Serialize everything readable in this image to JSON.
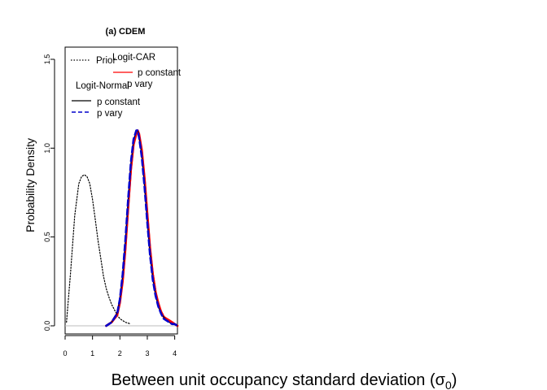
{
  "chart_data": {
    "type": "line",
    "panel_title": "(a) CDEM",
    "xlabel_text": "Between unit occupancy standard deviation (",
    "xlabel_symbol": "σ",
    "xlabel_subscript": "0",
    "xlabel_close": ")",
    "ylabel": "Probability Density",
    "xlim": [
      0,
      4.1
    ],
    "ylim": [
      0,
      1.55
    ],
    "x_ticks": [
      0,
      1,
      2,
      3,
      4
    ],
    "y_ticks": [
      0.0,
      0.5,
      1.0,
      1.5
    ],
    "x_tick_labels": [
      "0",
      "1",
      "2",
      "3",
      "4"
    ],
    "y_tick_labels": [
      "0.0",
      "0.5",
      "1.0",
      "1.5"
    ],
    "grid": false,
    "legend": {
      "placement": "top-left",
      "prior_label": "Prior",
      "car_group": "Logit-CAR",
      "car_const": "p constant",
      "car_vary": "p vary",
      "normal_group": "Logit-Normal",
      "normal_const": "p constant",
      "normal_vary": "p vary"
    },
    "series": [
      {
        "name": "Prior",
        "color": "#000000",
        "dash": "dotted",
        "x": [
          0.05,
          0.2,
          0.35,
          0.5,
          0.6,
          0.7,
          0.8,
          0.9,
          1.0,
          1.1,
          1.2,
          1.3,
          1.4,
          1.5,
          1.6,
          1.7,
          1.8,
          1.9,
          2.0,
          2.2,
          2.4
        ],
        "values": [
          0.02,
          0.3,
          0.62,
          0.8,
          0.84,
          0.85,
          0.84,
          0.8,
          0.71,
          0.6,
          0.48,
          0.38,
          0.28,
          0.21,
          0.16,
          0.12,
          0.09,
          0.06,
          0.04,
          0.02,
          0.01
        ]
      },
      {
        "name": "Logit-CAR p constant",
        "color": "#ff0000",
        "dash": "solid",
        "x": [
          1.5,
          1.7,
          1.9,
          2.0,
          2.1,
          2.2,
          2.3,
          2.4,
          2.5,
          2.6,
          2.65,
          2.7,
          2.8,
          2.9,
          3.0,
          3.1,
          3.2,
          3.3,
          3.4,
          3.5,
          3.6,
          3.7,
          3.8,
          3.9,
          4.0,
          4.1
        ],
        "values": [
          0.0,
          0.02,
          0.06,
          0.13,
          0.25,
          0.43,
          0.66,
          0.88,
          1.03,
          1.09,
          1.1,
          1.08,
          0.99,
          0.83,
          0.63,
          0.44,
          0.29,
          0.19,
          0.13,
          0.08,
          0.05,
          0.04,
          0.03,
          0.02,
          0.01,
          0.0
        ]
      },
      {
        "name": "Logit-CAR p vary",
        "color": "#ff0000",
        "dash": "solid",
        "x": [
          1.5,
          1.7,
          1.9,
          2.0,
          2.1,
          2.2,
          2.3,
          2.4,
          2.5,
          2.6,
          2.65,
          2.7,
          2.8,
          2.9,
          3.0,
          3.1,
          3.2,
          3.3,
          3.4,
          3.5,
          3.6,
          3.7,
          3.8,
          3.9,
          4.0,
          4.1
        ],
        "values": [
          0.0,
          0.02,
          0.07,
          0.14,
          0.26,
          0.44,
          0.67,
          0.88,
          1.02,
          1.08,
          1.09,
          1.07,
          0.98,
          0.82,
          0.62,
          0.43,
          0.29,
          0.19,
          0.12,
          0.08,
          0.05,
          0.04,
          0.03,
          0.02,
          0.01,
          0.0
        ]
      },
      {
        "name": "Logit-Normal p constant",
        "color": "#000000",
        "dash": "solid",
        "x": [
          1.5,
          1.7,
          1.9,
          2.0,
          2.1,
          2.2,
          2.3,
          2.4,
          2.5,
          2.6,
          2.65,
          2.7,
          2.8,
          2.9,
          3.0,
          3.1,
          3.2,
          3.3,
          3.4,
          3.5,
          3.6,
          3.7,
          3.8,
          3.9,
          4.0,
          4.1
        ],
        "values": [
          0.0,
          0.02,
          0.07,
          0.15,
          0.28,
          0.47,
          0.7,
          0.91,
          1.04,
          1.1,
          1.1,
          1.07,
          0.96,
          0.79,
          0.59,
          0.41,
          0.27,
          0.18,
          0.11,
          0.07,
          0.05,
          0.03,
          0.02,
          0.01,
          0.01,
          0.0
        ]
      },
      {
        "name": "Logit-Normal p vary",
        "color": "#0000cc",
        "dash": "dashed",
        "x": [
          1.5,
          1.7,
          1.9,
          2.0,
          2.1,
          2.2,
          2.3,
          2.4,
          2.5,
          2.6,
          2.65,
          2.7,
          2.8,
          2.9,
          3.0,
          3.1,
          3.2,
          3.3,
          3.4,
          3.5,
          3.6,
          3.7,
          3.8,
          3.9,
          4.0,
          4.1
        ],
        "values": [
          0.0,
          0.02,
          0.07,
          0.15,
          0.29,
          0.48,
          0.71,
          0.92,
          1.05,
          1.1,
          1.1,
          1.06,
          0.95,
          0.78,
          0.58,
          0.4,
          0.26,
          0.17,
          0.11,
          0.07,
          0.04,
          0.03,
          0.02,
          0.01,
          0.01,
          0.0
        ]
      }
    ]
  }
}
